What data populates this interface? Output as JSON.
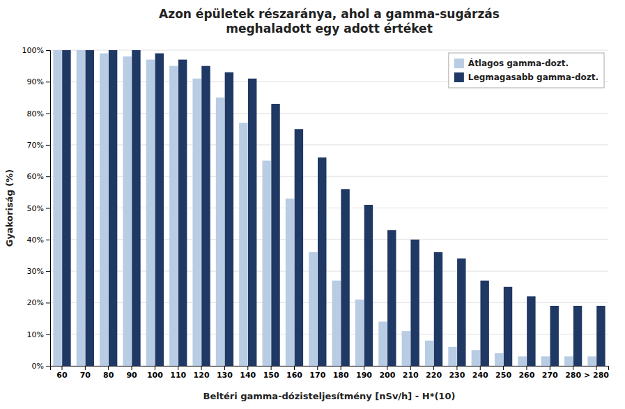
{
  "chart_data": {
    "type": "bar",
    "title": "Azon épületek részaránya, ahol a gamma-sugárzás\nmeghaladott egy adott értéket",
    "x_label": "Beltéri gamma-dózisteljesítmény  [nSv/h] - H*(10)",
    "y_label": "Gyakoriság (%)",
    "categories": [
      "60",
      "70",
      "80",
      "90",
      "100",
      "110",
      "120",
      "130",
      "140",
      "150",
      "160",
      "170",
      "180",
      "190",
      "200",
      "210",
      "220",
      "230",
      "240",
      "250",
      "260",
      "270",
      "280",
      "> 280"
    ],
    "series": [
      {
        "name": "Átlagos gamma-dozt.",
        "color": "#b8cce4",
        "values": [
          100,
          100,
          99,
          98,
          97,
          95,
          91,
          85,
          77,
          65,
          53,
          36,
          27,
          21,
          14,
          11,
          8,
          6,
          5,
          4,
          3,
          3,
          3,
          3
        ]
      },
      {
        "name": "Legmagasabb gamma-dozt.",
        "color": "#1f3864",
        "values": [
          100,
          100,
          100,
          100,
          99,
          97,
          95,
          93,
          91,
          83,
          75,
          66,
          56,
          51,
          43,
          40,
          36,
          34,
          27,
          25,
          22,
          19,
          19,
          19
        ]
      }
    ],
    "ylim": [
      0,
      100
    ],
    "yticks": [
      {
        "value": 0,
        "label": "0%"
      },
      {
        "value": 10,
        "label": "10%"
      },
      {
        "value": 20,
        "label": "20%"
      },
      {
        "value": 30,
        "label": "30%"
      },
      {
        "value": 40,
        "label": "40%"
      },
      {
        "value": 50,
        "label": "50%"
      },
      {
        "value": 60,
        "label": "60%"
      },
      {
        "value": 70,
        "label": "70%"
      },
      {
        "value": 80,
        "label": "80%"
      },
      {
        "value": 90,
        "label": "90%"
      },
      {
        "value": 100,
        "label": "100%"
      }
    ],
    "grid": true,
    "legend": "upper right"
  }
}
